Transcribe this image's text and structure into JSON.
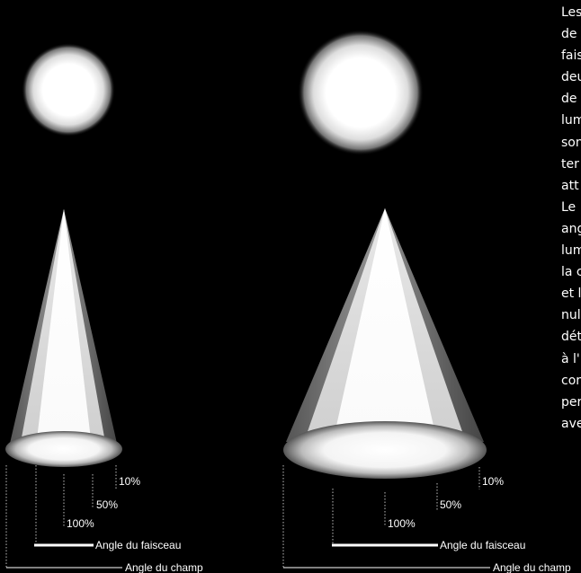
{
  "diagrams": [
    {
      "labels": {
        "p10": "10%",
        "p50": "50%",
        "p100": "100%",
        "beam": "Angle du faisceau",
        "field": "Angle du champ"
      }
    },
    {
      "labels": {
        "p10": "10%",
        "p50": "50%",
        "p100": "100%",
        "beam": "Angle du faisceau",
        "field": "Angle du champ"
      }
    }
  ],
  "side_text_lines": [
    "Les",
    "de",
    "fais",
    "deu",
    "de",
    "lum",
    "son",
    "ter",
    "att",
    "Le",
    "ang",
    "lum",
    "la c",
    "et l",
    "nul",
    "dét",
    "à l'",
    "cor",
    "per",
    "ave"
  ],
  "colors": {
    "background": "#000000",
    "light": "#ffffff"
  }
}
